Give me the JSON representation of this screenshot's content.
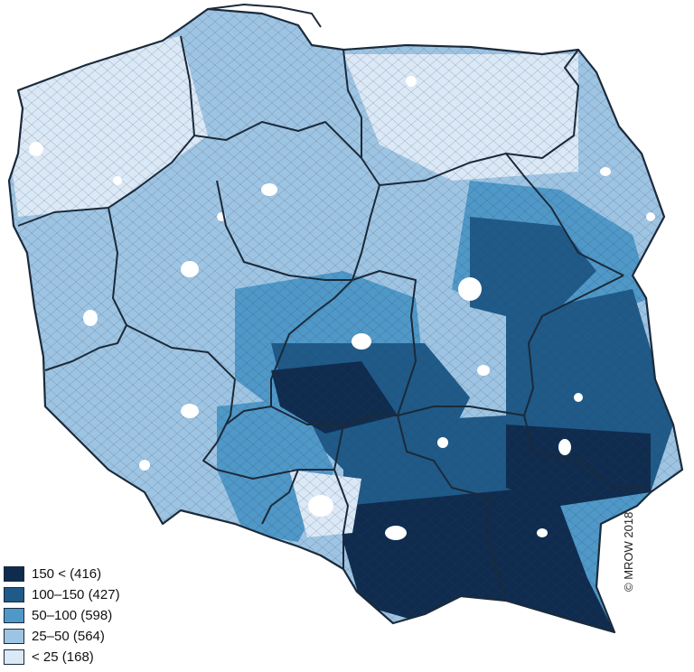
{
  "legend": {
    "items": [
      {
        "label": "150 < (416)",
        "color": "#0f2c4f"
      },
      {
        "label": "100–150 (427)",
        "color": "#1f5a88"
      },
      {
        "label": "50–100 (598)",
        "color": "#4f98c8"
      },
      {
        "label": "25–50 (564)",
        "color": "#9ec4e3"
      },
      {
        "label": "< 25 (168)",
        "color": "#dbe8f6"
      }
    ]
  },
  "copyright": "© MROW 2018",
  "colors": {
    "border": "#1b2a3a",
    "water": "#ffffff",
    "background": "#ffffff"
  }
}
